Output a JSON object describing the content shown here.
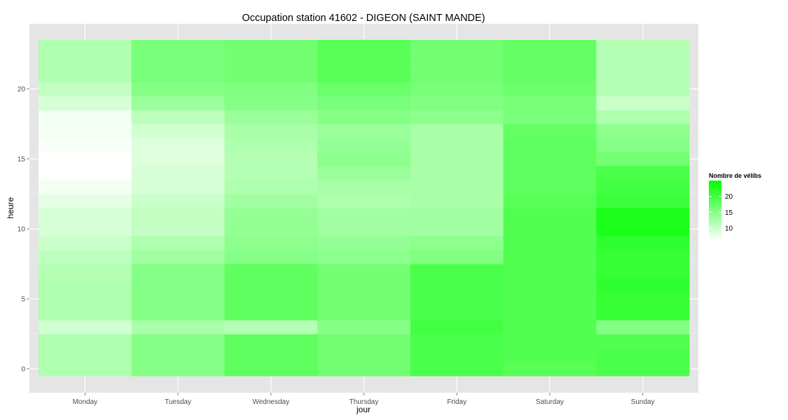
{
  "chart_data": {
    "type": "heatmap",
    "title": "Occupation station 41602 - DIGEON (SAINT MANDE)",
    "xlabel": "jour",
    "ylabel": "heure",
    "categories": [
      "Monday",
      "Tuesday",
      "Wednesday",
      "Thursday",
      "Friday",
      "Saturday",
      "Sunday"
    ],
    "hours": [
      0,
      1,
      2,
      3,
      4,
      5,
      6,
      7,
      8,
      9,
      10,
      11,
      12,
      13,
      14,
      15,
      16,
      17,
      18,
      19,
      20,
      21,
      22,
      23
    ],
    "ylim": [
      -0.5,
      23.5
    ],
    "yticks": [
      0,
      5,
      10,
      15,
      20
    ],
    "color_low": "#ffffff",
    "color_high": "#00ff00",
    "value_range": [
      6,
      25
    ],
    "legend": {
      "title": "Nombre de vélibs",
      "breaks": [
        10,
        15,
        20
      ],
      "placement": "right"
    },
    "grid": true,
    "panel_background": "#e5e5e5",
    "values": [
      [
        12,
        12,
        12,
        9.5,
        12,
        12,
        12,
        11.5,
        11,
        10,
        9,
        9,
        8,
        7,
        6,
        6,
        6.5,
        7,
        7,
        9,
        10.5,
        12,
        12,
        12
      ],
      [
        15,
        15,
        15,
        12.5,
        15,
        15,
        15,
        15,
        13,
        12,
        10.5,
        10.5,
        10,
        9,
        9,
        8.5,
        8.5,
        9.5,
        11,
        13.5,
        15,
        16,
        16,
        16
      ],
      [
        18,
        18,
        18,
        11.5,
        18,
        18,
        18,
        18,
        15,
        14.5,
        14,
        14,
        13,
        12,
        11.5,
        11.5,
        12,
        12.5,
        13.5,
        15,
        15.5,
        16.5,
        16.5,
        16.5
      ],
      [
        16.5,
        16.5,
        16.5,
        15,
        16.5,
        16.5,
        16.5,
        16.5,
        14.5,
        14,
        13,
        13,
        12,
        12.5,
        13.5,
        14.5,
        14,
        13.5,
        15,
        16,
        17,
        18.5,
        18.5,
        18.5
      ],
      [
        19.5,
        19.5,
        19.5,
        20,
        19.5,
        19.5,
        19.5,
        19.5,
        15.5,
        14.5,
        13,
        13,
        12.5,
        12.5,
        12.5,
        12.5,
        12.5,
        12.5,
        14.5,
        15.5,
        16,
        16.5,
        16.5,
        16.5
      ],
      [
        18.5,
        19,
        19,
        19,
        19,
        19,
        19,
        19,
        19,
        19,
        19,
        19,
        18.5,
        18,
        18,
        18,
        18,
        17.5,
        16,
        16,
        17,
        17.5,
        17.5,
        17.5
      ],
      [
        19.5,
        19.5,
        19,
        15,
        21,
        21,
        21.5,
        21,
        21,
        21.5,
        23,
        23,
        20.5,
        20,
        19.5,
        16.5,
        15,
        14.5,
        12,
        10,
        11.5,
        11.5,
        11.5,
        11.5
      ]
    ]
  }
}
